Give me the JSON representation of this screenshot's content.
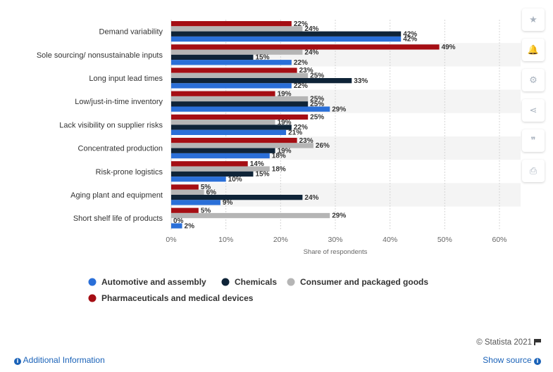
{
  "chart_data": {
    "type": "bar",
    "orientation": "horizontal",
    "categories": [
      "Demand variability",
      "Sole sourcing/ nonsustainable inputs",
      "Long input lead times",
      "Low/just-in-time inventory",
      "Lack visibility on supplier risks",
      "Concentrated production",
      "Risk-prone logistics",
      "Aging plant and equipment",
      "Short shelf life of products"
    ],
    "series": [
      {
        "name": "Pharmaceuticals and medical devices",
        "color": "#a50e14",
        "values": [
          22,
          49,
          23,
          19,
          25,
          23,
          14,
          5,
          5
        ]
      },
      {
        "name": "Consumer and packaged goods",
        "color": "#b5b5b5",
        "values": [
          24,
          24,
          25,
          25,
          19,
          26,
          18,
          6,
          29
        ]
      },
      {
        "name": "Chemicals",
        "color": "#0f2438",
        "values": [
          42,
          15,
          33,
          25,
          22,
          19,
          15,
          24,
          0
        ]
      },
      {
        "name": "Automotive and assembly",
        "color": "#2a6fd8",
        "values": [
          42,
          22,
          22,
          29,
          21,
          18,
          10,
          9,
          2
        ]
      }
    ],
    "legend_order": [
      "Automotive and assembly",
      "Chemicals",
      "Consumer and packaged goods",
      "Pharmaceuticals and medical devices"
    ],
    "xlabel": "Share of respondents",
    "xlim": [
      0,
      60
    ],
    "ticks": [
      0,
      10,
      20,
      30,
      40,
      50,
      60
    ],
    "tick_labels": [
      "0%",
      "10%",
      "20%",
      "30%",
      "40%",
      "50%",
      "60%"
    ],
    "value_suffix": "%",
    "grid": true,
    "legend_position": "bottom"
  },
  "sidebar": {
    "buttons": [
      {
        "name": "star",
        "glyph": "★"
      },
      {
        "name": "bell",
        "glyph": "🔔"
      },
      {
        "name": "gear",
        "glyph": "⚙"
      },
      {
        "name": "share",
        "glyph": "⋖"
      },
      {
        "name": "quote",
        "glyph": "❞"
      },
      {
        "name": "print",
        "glyph": "⎙"
      }
    ]
  },
  "credit": "© Statista 2021",
  "footer": {
    "additional_info": "Additional Information",
    "show_source": "Show source"
  }
}
